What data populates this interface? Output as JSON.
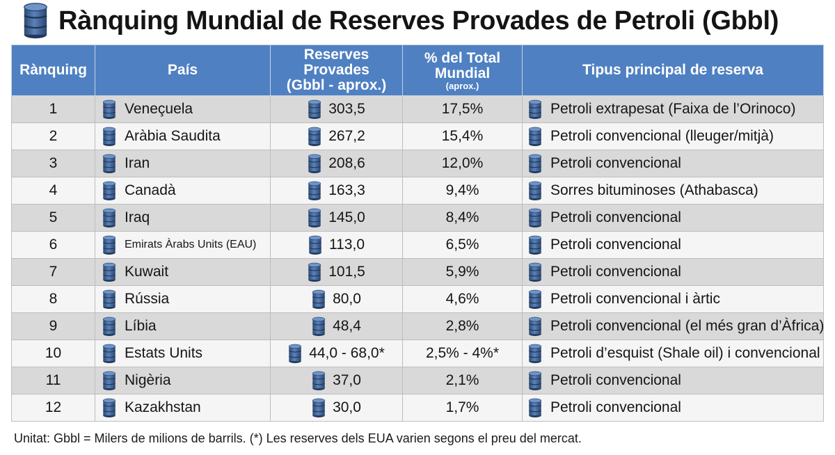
{
  "title": "Rànquing Mundial de Reserves Provades de Petroli (Gbbl)",
  "title_icon": "oil-barrel-icon",
  "colors": {
    "header": "#4f80c2",
    "barrel": "#3e6396",
    "row_odd": "#d9d9d9",
    "row_even": "#f5f5f5"
  },
  "table": {
    "headers": {
      "rank": "Rànquing",
      "country": "País",
      "reserves_line1": "Reserves Provades",
      "reserves_line2": "(Gbbl - aprox.)",
      "pct_line1": "% del Total",
      "pct_line2": "Mundial",
      "pct_line3": "(aprox.)",
      "type": "Tipus principal de reserva"
    },
    "rows": [
      {
        "rank": "1",
        "country": "Veneçuela",
        "reserves": "303,5",
        "pct": "17,5%",
        "type": "Petroli extrapesat (Faixa de l’Orinoco)"
      },
      {
        "rank": "2",
        "country": "Aràbia Saudita",
        "reserves": "267,2",
        "pct": "15,4%",
        "type": "Petroli convencional (lleuger/mitjà)"
      },
      {
        "rank": "3",
        "country": "Iran",
        "reserves": "208,6",
        "pct": "12,0%",
        "type": "Petroli convencional"
      },
      {
        "rank": "4",
        "country": "Canadà",
        "reserves": "163,3",
        "pct": "9,4%",
        "type": "Sorres bituminoses (Athabasca)"
      },
      {
        "rank": "5",
        "country": "Iraq",
        "reserves": "145,0",
        "pct": "8,4%",
        "type": "Petroli convencional"
      },
      {
        "rank": "6",
        "country": "Emirats Àrabs Units (EAU)",
        "reserves": "113,0",
        "pct": "6,5%",
        "type": "Petroli convencional"
      },
      {
        "rank": "7",
        "country": "Kuwait",
        "reserves": "101,5",
        "pct": "5,9%",
        "type": "Petroli convencional"
      },
      {
        "rank": "8",
        "country": "Rússia",
        "reserves": "80,0",
        "pct": "4,6%",
        "type": "Petroli convencional i àrtic"
      },
      {
        "rank": "9",
        "country": "Líbia",
        "reserves": "48,4",
        "pct": "2,8%",
        "type": "Petroli convencional (el més gran d’Àfrica)"
      },
      {
        "rank": "10",
        "country": "Estats Units",
        "reserves": "44,0 - 68,0*",
        "pct": "2,5% - 4%*",
        "type": "Petroli d’esquist (Shale oil) i convencional"
      },
      {
        "rank": "11",
        "country": "Nigèria",
        "reserves": "37,0",
        "pct": "2,1%",
        "type": "Petroli convencional"
      },
      {
        "rank": "12",
        "country": "Kazakhstan",
        "reserves": "30,0",
        "pct": "1,7%",
        "type": "Petroli convencional"
      }
    ]
  },
  "footnote": "Unitat: Gbbl = Milers de milions de barrils. (*) Les reserves dels EUA varien segons el preu del mercat."
}
